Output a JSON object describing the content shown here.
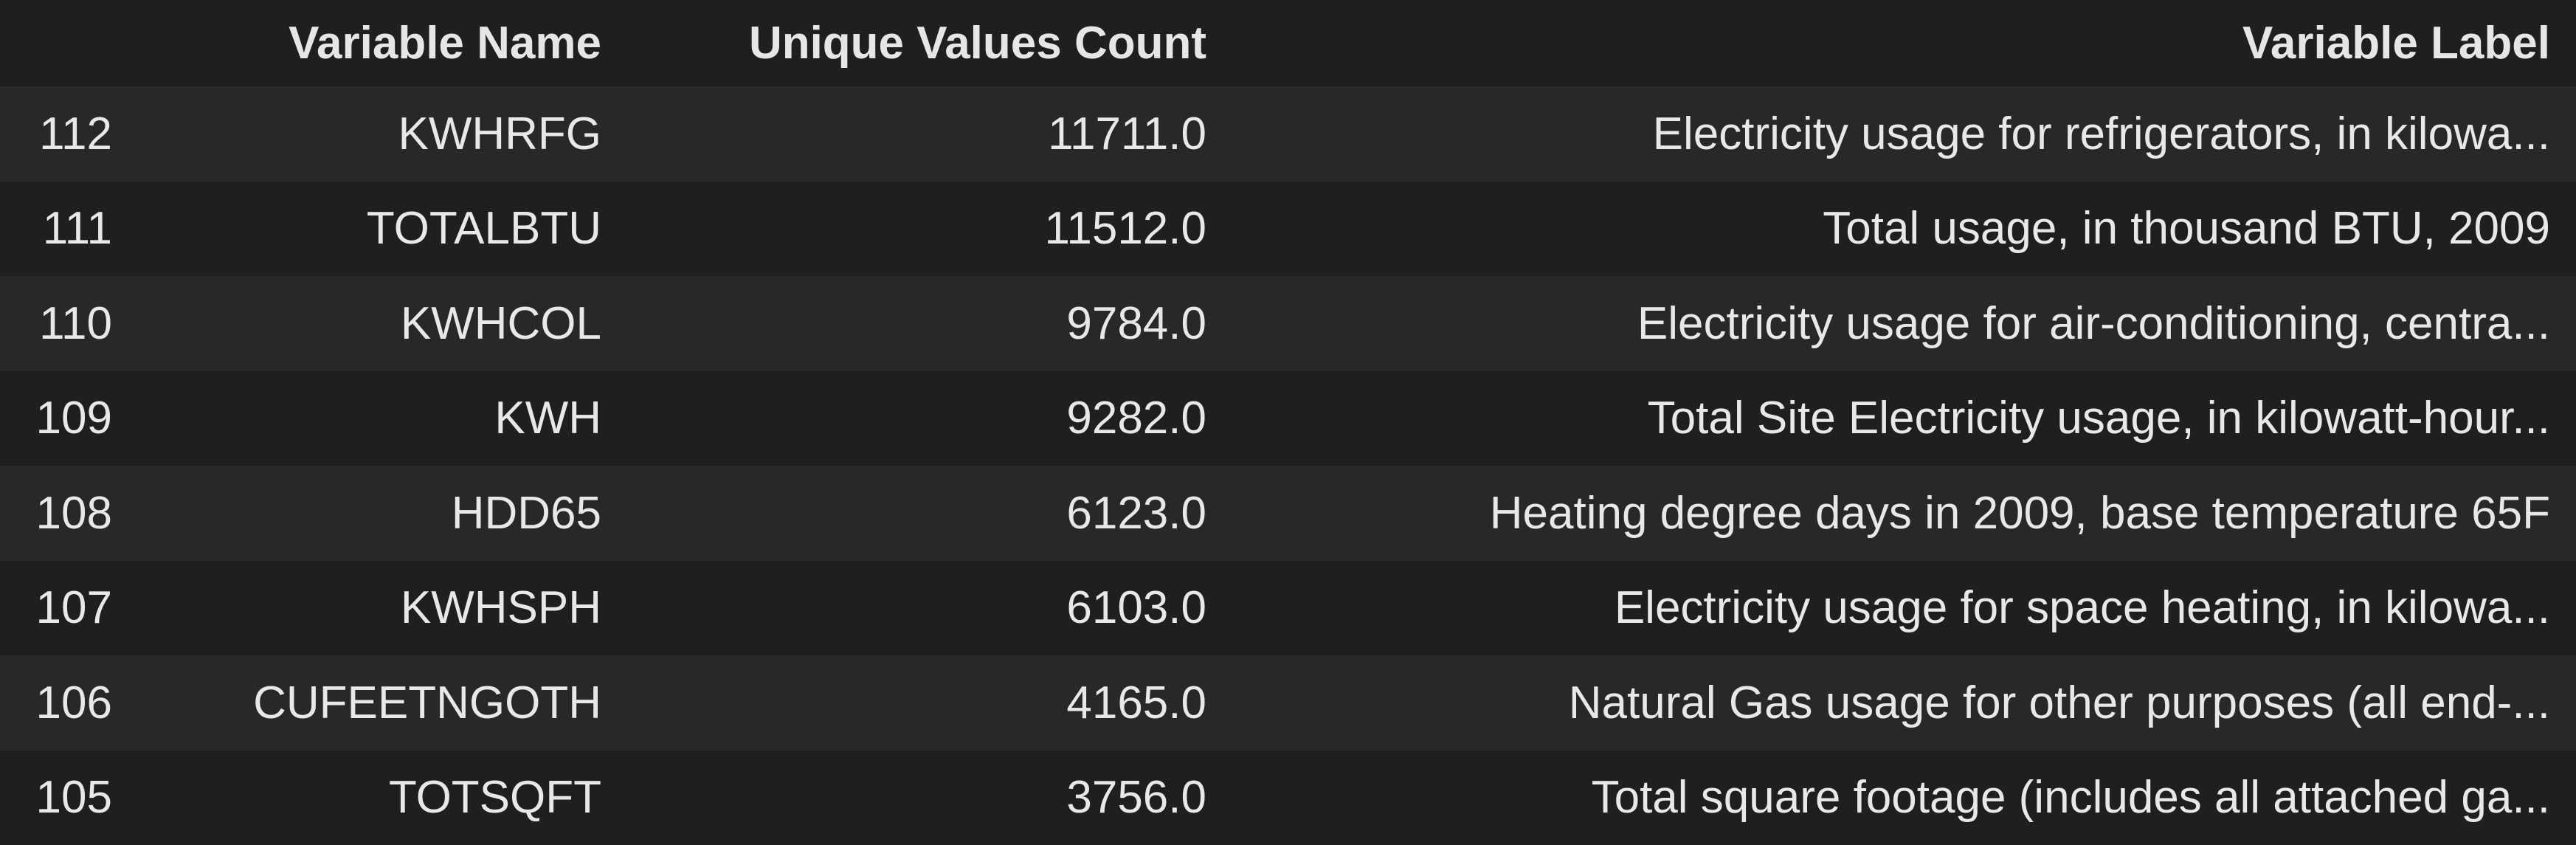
{
  "table": {
    "headers": {
      "index": "",
      "variable_name": "Variable Name",
      "unique_values_count": "Unique Values Count",
      "variable_label": "Variable Label"
    },
    "rows": [
      {
        "index": "112",
        "variable_name": "KWHRFG",
        "unique_values_count": "11711.0",
        "variable_label": "Electricity usage for refrigerators, in kilowa..."
      },
      {
        "index": "111",
        "variable_name": "TOTALBTU",
        "unique_values_count": "11512.0",
        "variable_label": "Total usage, in thousand BTU, 2009"
      },
      {
        "index": "110",
        "variable_name": "KWHCOL",
        "unique_values_count": "9784.0",
        "variable_label": "Electricity usage for air-conditioning, centra..."
      },
      {
        "index": "109",
        "variable_name": "KWH",
        "unique_values_count": "9282.0",
        "variable_label": "Total Site Electricity usage, in kilowatt-hour..."
      },
      {
        "index": "108",
        "variable_name": "HDD65",
        "unique_values_count": "6123.0",
        "variable_label": "Heating degree days in 2009, base temperature 65F"
      },
      {
        "index": "107",
        "variable_name": "KWHSPH",
        "unique_values_count": "6103.0",
        "variable_label": "Electricity usage for space heating, in kilowa..."
      },
      {
        "index": "106",
        "variable_name": "CUFEETNGOTH",
        "unique_values_count": "4165.0",
        "variable_label": "Natural Gas usage for other purposes (all end-..."
      },
      {
        "index": "105",
        "variable_name": "TOTSQFT",
        "unique_values_count": "3756.0",
        "variable_label": "Total square footage (includes all attached ga..."
      }
    ]
  }
}
